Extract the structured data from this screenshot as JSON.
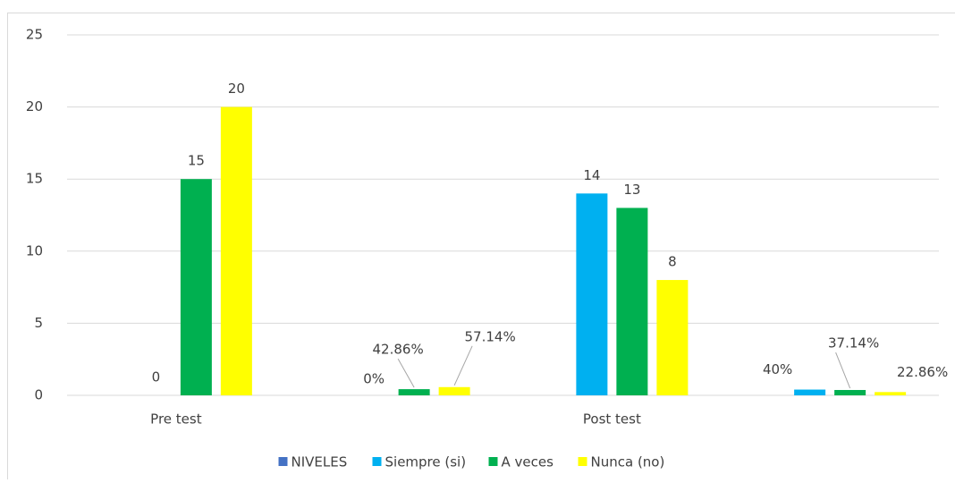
{
  "chart_data": {
    "type": "bar",
    "categories": [
      "Pre test",
      null,
      "Post test",
      null
    ],
    "series": [
      {
        "name": "NIVELES",
        "color": "#4472c4",
        "values": [
          null,
          null,
          null,
          null
        ]
      },
      {
        "name": "Siempre (si)",
        "color": "#00b0f0",
        "values": [
          0,
          0,
          14,
          0.4
        ],
        "value_labels": [
          "0",
          "0%",
          "14",
          "40%"
        ]
      },
      {
        "name": "A veces",
        "color": "#00b050",
        "values": [
          15,
          0.4286,
          13,
          0.3714
        ],
        "value_labels": [
          "15",
          "42.86%",
          "13",
          "37.14%"
        ]
      },
      {
        "name": "Nunca (no)",
        "color": "#ffff00",
        "values": [
          20,
          0.5714,
          8,
          0.2286
        ],
        "value_labels": [
          "20",
          "57.14%",
          "8",
          "22.86%"
        ]
      }
    ],
    "ylim": [
      0,
      25
    ],
    "yticks": [
      0,
      5,
      10,
      15,
      20,
      25
    ],
    "grid": true,
    "legend": "bottom"
  }
}
